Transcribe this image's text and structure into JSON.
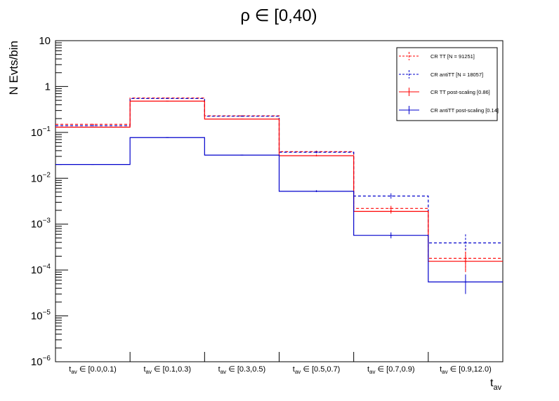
{
  "chart_data": {
    "type": "histogram",
    "title": "ρ ∈ [0,40)",
    "ylabel": "N Evts/bin",
    "xlabel": "t",
    "xlabel_sub": "av",
    "yscale": "log",
    "ylim": [
      1e-06,
      10
    ],
    "y_tick_labels": [
      {
        "value": 10,
        "base": "10",
        "exp": ""
      },
      {
        "value": 1,
        "base": "1",
        "exp": ""
      },
      {
        "value": 0.1,
        "base": "10",
        "exp": "−1"
      },
      {
        "value": 0.01,
        "base": "10",
        "exp": "−2"
      },
      {
        "value": 0.001,
        "base": "10",
        "exp": "−3"
      },
      {
        "value": 0.0001,
        "base": "10",
        "exp": "−4"
      },
      {
        "value": 1e-05,
        "base": "10",
        "exp": "−5"
      },
      {
        "value": 1e-06,
        "base": "10",
        "exp": "−6"
      }
    ],
    "categories": [
      {
        "prefix": "t",
        "sub": "av",
        "range": " ∈ [0.0,0.1)"
      },
      {
        "prefix": "t",
        "sub": "av",
        "range": " ∈ [0.1,0.3)"
      },
      {
        "prefix": "t",
        "sub": "av",
        "range": " ∈ [0.3,0.5)"
      },
      {
        "prefix": "t",
        "sub": "av",
        "range": " ∈ [0.5,0.7)"
      },
      {
        "prefix": "t",
        "sub": "av",
        "range": " ∈ [0.7,0.9)"
      },
      {
        "prefix": "t",
        "sub": "av",
        "range": " ∈ [0.9,12.0)"
      }
    ],
    "series": [
      {
        "name": "CR TT [N = 91251]",
        "color": "#ff0000",
        "style": "dashed",
        "values": [
          0.15,
          0.56,
          0.23,
          0.038,
          0.0022,
          0.00018
        ],
        "err_low": [
          0.15,
          0.56,
          0.23,
          0.036,
          0.0019,
          0.0001
        ],
        "err_high": [
          0.15,
          0.56,
          0.23,
          0.04,
          0.0025,
          0.0003
        ]
      },
      {
        "name": "CR antiTT [N = 18057]",
        "color": "#0000cc",
        "style": "dashed",
        "values": [
          0.14,
          0.55,
          0.225,
          0.037,
          0.0041,
          0.00039
        ],
        "err_low": [
          0.14,
          0.55,
          0.225,
          0.035,
          0.0036,
          0.00025
        ],
        "err_high": [
          0.14,
          0.55,
          0.225,
          0.039,
          0.0047,
          0.0006
        ]
      },
      {
        "name": "CR TT post-scaling [0.86]",
        "color": "#ff0000",
        "style": "solid",
        "values": [
          0.13,
          0.48,
          0.195,
          0.031,
          0.0019,
          0.000155
        ],
        "err_low": [
          0.13,
          0.48,
          0.195,
          0.03,
          0.0017,
          9e-05
        ],
        "err_high": [
          0.13,
          0.48,
          0.195,
          0.033,
          0.0021,
          0.00025
        ]
      },
      {
        "name": "CR antiTT post-scaling [0.14]",
        "color": "#0000cc",
        "style": "solid",
        "values": [
          0.02,
          0.077,
          0.032,
          0.0052,
          0.00057,
          5.5e-05
        ],
        "err_low": [
          0.02,
          0.077,
          0.032,
          0.005,
          0.00049,
          3e-05
        ],
        "err_high": [
          0.02,
          0.077,
          0.032,
          0.0055,
          0.00066,
          8e-05
        ]
      }
    ]
  }
}
